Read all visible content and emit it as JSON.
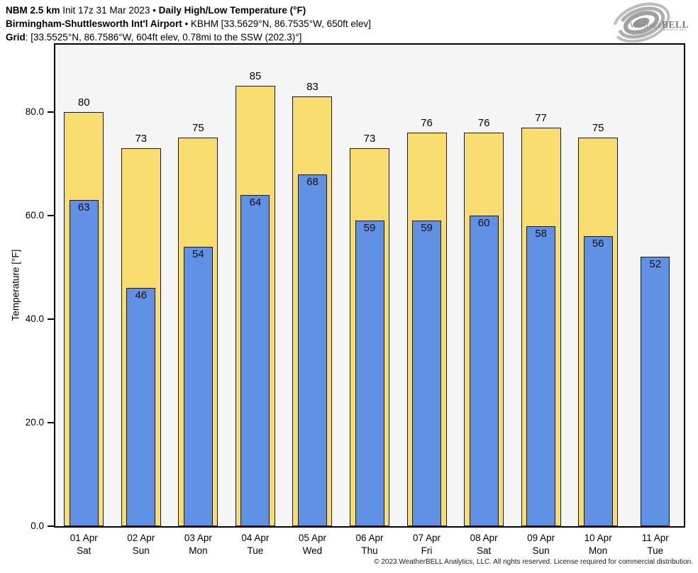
{
  "header": {
    "line1_bold1": "NBM 2.5 km",
    "line1_regular": " Init 17z 31 Mar 2023 • ",
    "line1_bold2": "Daily High/Low Temperature (°F)",
    "line2_bold": "Birmingham-Shuttlesworth Int'l Airport",
    "line2_regular": " • KBHM [33.5629°N, 86.7535°W, 650ft elev]",
    "line3_bold": "Grid",
    "line3_regular": ": [33.5525°N, 86.7586°W, 604ft elev, 0.78mi to the SSW (202.3)°]"
  },
  "logo": {
    "weather": "Weather",
    "bell": "BELL",
    "sub": "Analytics LLC"
  },
  "footer": {
    "copyright": "© 2023 WeatherBELL Analytics, LLC. All rights reserved. License required for commercial distribution."
  },
  "chart_data": {
    "type": "bar",
    "title": "Daily High/Low Temperature (°F)",
    "ylabel": "Temperature [°F]",
    "ylim": [
      0,
      93
    ],
    "grid": false,
    "legend": "none",
    "yticks": [
      {
        "value": 0,
        "label": "0.0"
      },
      {
        "value": 20,
        "label": "20.0"
      },
      {
        "value": 40,
        "label": "40.0"
      },
      {
        "value": 60,
        "label": "60.0"
      },
      {
        "value": 80,
        "label": "80.0"
      }
    ],
    "categories": [
      {
        "date": "01 Apr",
        "day": "Sat"
      },
      {
        "date": "02 Apr",
        "day": "Sun"
      },
      {
        "date": "03 Apr",
        "day": "Mon"
      },
      {
        "date": "04 Apr",
        "day": "Tue"
      },
      {
        "date": "05 Apr",
        "day": "Wed"
      },
      {
        "date": "06 Apr",
        "day": "Thu"
      },
      {
        "date": "07 Apr",
        "day": "Fri"
      },
      {
        "date": "08 Apr",
        "day": "Sat"
      },
      {
        "date": "09 Apr",
        "day": "Sun"
      },
      {
        "date": "10 Apr",
        "day": "Mon"
      },
      {
        "date": "11 Apr",
        "day": "Tue"
      }
    ],
    "series": [
      {
        "name": "High",
        "color": "#fadd71",
        "values": [
          80,
          73,
          75,
          85,
          83,
          73,
          76,
          76,
          77,
          75,
          null
        ]
      },
      {
        "name": "Low",
        "color": "#6191e4",
        "values": [
          63,
          46,
          54,
          64,
          68,
          59,
          59,
          60,
          58,
          56,
          52
        ]
      }
    ],
    "styles": {
      "plot_bg": "#f5f5f5",
      "bar_border": "#1a1a1a",
      "axis_color": "#000000",
      "high_bar_width": 56,
      "low_bar_width": 41
    }
  }
}
